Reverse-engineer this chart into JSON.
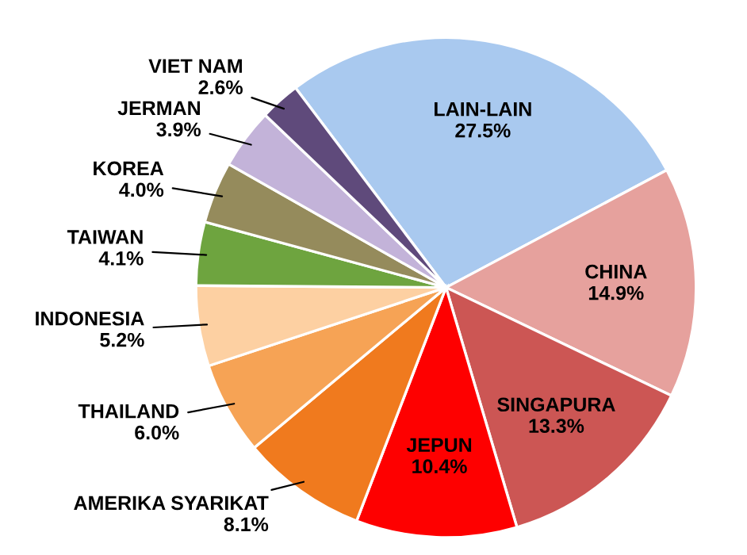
{
  "chart_data": {
    "type": "pie",
    "categories": [
      "LAIN-LAIN",
      "CHINA",
      "SINGAPURA",
      "JEPUN",
      "AMERIKA SYARIKAT",
      "THAILAND",
      "INDONESIA",
      "TAIWAN",
      "KOREA",
      "JERMAN",
      "VIET NAM"
    ],
    "values": [
      27.5,
      14.9,
      13.3,
      10.4,
      8.1,
      6.0,
      5.2,
      4.1,
      4.0,
      3.9,
      2.6
    ],
    "colors": [
      "#a9c9ef",
      "#e6a19d",
      "#cc5654",
      "#fe0000",
      "#f07a1e",
      "#f6a355",
      "#fdd0a2",
      "#6ea43f",
      "#958b5c",
      "#c3b3d9",
      "#5f4a7b"
    ],
    "value_labels": [
      "27.5%",
      "14.9%",
      "13.3%",
      "10.4%",
      "8.1%",
      "6.0%",
      "5.2%",
      "4.1%",
      "4.0%",
      "3.9%",
      "2.6%"
    ],
    "legend": false
  }
}
